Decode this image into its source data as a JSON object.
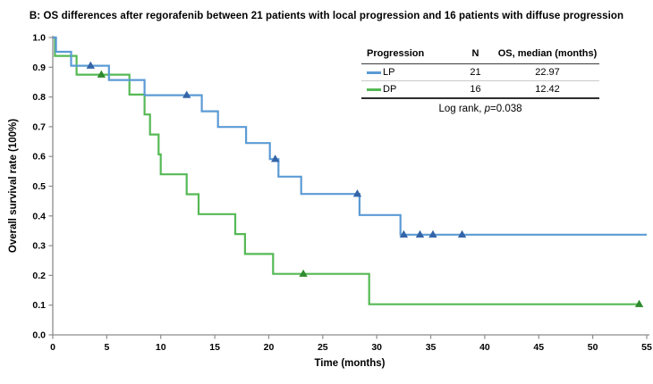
{
  "title": "B: OS differences after regorafenib between 21 patients with local progression and 16 patients with diffuse progression",
  "chart_data": {
    "type": "line",
    "variant": "kaplan-meier-step",
    "xlabel": "Time (months)",
    "ylabel": "Overall survival rate (100%)",
    "xlim": [
      0,
      55
    ],
    "ylim": [
      0.0,
      1.0
    ],
    "xticks": [
      0,
      5,
      10,
      15,
      20,
      25,
      30,
      35,
      40,
      45,
      50,
      55
    ],
    "ytick_labels": [
      "0.0",
      "0.1",
      "0.2",
      "0.3",
      "0.4",
      "0.5",
      "0.6",
      "0.7",
      "0.8",
      "0.9",
      "1.0"
    ],
    "grid": false,
    "legend_position": "top-right-table",
    "axis_color": "#8c8c8c",
    "series": [
      {
        "name": "LP",
        "n": 21,
        "median_os_months": "22.97",
        "color": "#5B9BD5",
        "censor_color": "#3465A8",
        "steps": [
          [
            0,
            1.0
          ],
          [
            0.3,
            0.952
          ],
          [
            1.7,
            0.905
          ],
          [
            5.2,
            0.857
          ],
          [
            8.5,
            0.806
          ],
          [
            13.8,
            0.752
          ],
          [
            15.3,
            0.699
          ],
          [
            17.9,
            0.645
          ],
          [
            20.1,
            0.591
          ],
          [
            20.9,
            0.532
          ],
          [
            23.0,
            0.474
          ],
          [
            28.4,
            0.403
          ],
          [
            32.2,
            0.337
          ]
        ],
        "end_time": 55,
        "censors": [
          [
            3.5,
            0.905
          ],
          [
            12.4,
            0.806
          ],
          [
            20.6,
            0.591
          ],
          [
            28.2,
            0.474
          ],
          [
            32.5,
            0.337
          ],
          [
            34.0,
            0.337
          ],
          [
            35.2,
            0.337
          ],
          [
            37.9,
            0.337
          ]
        ]
      },
      {
        "name": "DP",
        "n": 16,
        "median_os_months": "12.42",
        "color": "#55B955",
        "censor_color": "#2E8B2E",
        "steps": [
          [
            0,
            1.0
          ],
          [
            0.2,
            0.938
          ],
          [
            2.2,
            0.875
          ],
          [
            7.1,
            0.808
          ],
          [
            8.5,
            0.741
          ],
          [
            9.0,
            0.674
          ],
          [
            9.8,
            0.607
          ],
          [
            10.0,
            0.54
          ],
          [
            12.4,
            0.473
          ],
          [
            13.5,
            0.406
          ],
          [
            16.9,
            0.339
          ],
          [
            17.8,
            0.272
          ],
          [
            20.4,
            0.205
          ],
          [
            29.3,
            0.103
          ]
        ],
        "end_time": 54.5,
        "censors": [
          [
            4.5,
            0.875
          ],
          [
            23.2,
            0.205
          ],
          [
            54.3,
            0.103
          ]
        ]
      }
    ],
    "legend_table": {
      "headers": [
        "Progression",
        "N",
        "OS, median (months)"
      ],
      "rows": [
        [
          "LP",
          "21",
          "22.97"
        ],
        [
          "DP",
          "16",
          "12.42"
        ]
      ],
      "footer": {
        "prefix": "Log rank, ",
        "italic": "p",
        "suffix": "=0.038"
      }
    }
  }
}
